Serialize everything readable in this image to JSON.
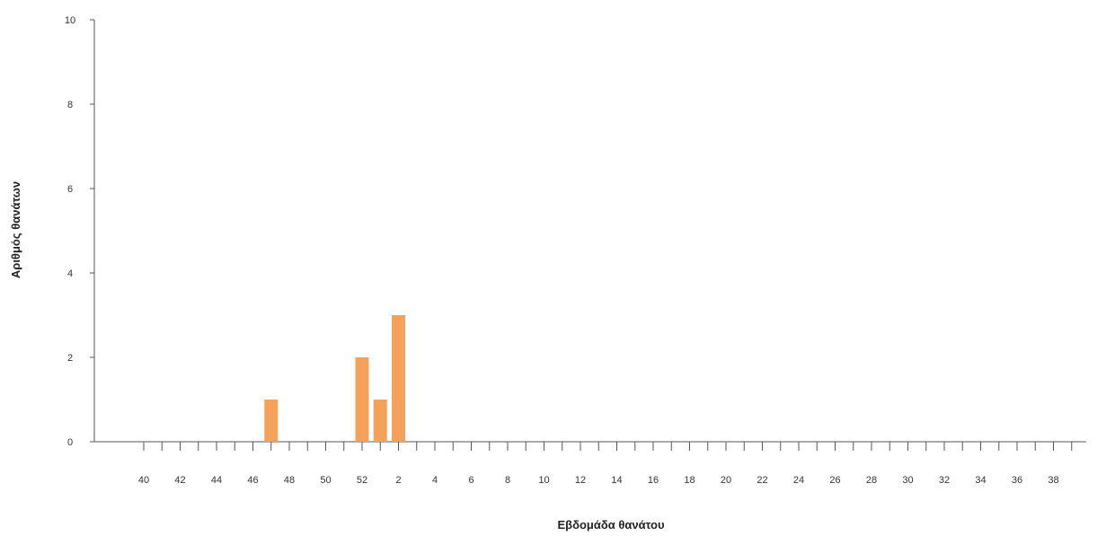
{
  "chart_data": {
    "type": "bar",
    "title": "",
    "xlabel": "Εβδομάδα θανάτου",
    "ylabel": "Αριθμός θανάτων",
    "ylim": [
      0,
      10
    ],
    "yticks": [
      0,
      2,
      4,
      6,
      8,
      10
    ],
    "grid": false,
    "legend": "none",
    "bar_color": "#F4A259",
    "categories": [
      40,
      41,
      42,
      43,
      44,
      45,
      46,
      47,
      48,
      49,
      50,
      51,
      52,
      1,
      2,
      3,
      4,
      5,
      6,
      7,
      8,
      9,
      10,
      11,
      12,
      13,
      14,
      15,
      16,
      17,
      18,
      19,
      20,
      21,
      22,
      23,
      24,
      25,
      26,
      27,
      28,
      29,
      30,
      31,
      32,
      33,
      34,
      35,
      36,
      37,
      38,
      39
    ],
    "values": [
      0,
      0,
      0,
      0,
      0,
      0,
      0,
      1,
      0,
      0,
      0,
      0,
      2,
      1,
      3,
      0,
      0,
      0,
      0,
      0,
      0,
      0,
      0,
      0,
      0,
      0,
      0,
      0,
      0,
      0,
      0,
      0,
      0,
      0,
      0,
      0,
      0,
      0,
      0,
      0,
      0,
      0,
      0,
      0,
      0,
      0,
      0,
      0,
      0,
      0,
      0,
      0
    ],
    "xtick_labels": [
      "40",
      "42",
      "44",
      "46",
      "48",
      "50",
      "52",
      "2",
      "4",
      "6",
      "8",
      "10",
      "12",
      "14",
      "16",
      "18",
      "20",
      "22",
      "24",
      "26",
      "28",
      "30",
      "32",
      "34",
      "36",
      "38"
    ]
  }
}
